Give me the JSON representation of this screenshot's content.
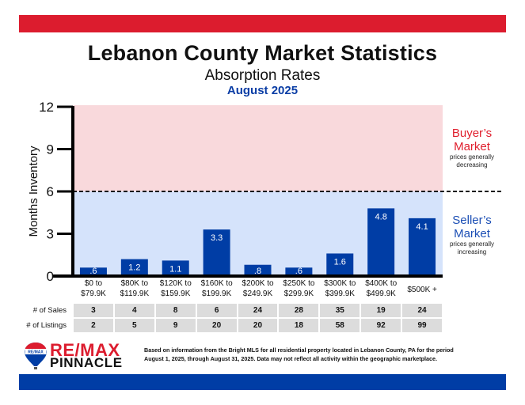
{
  "header": {
    "title": "Lebanon County Market Statistics",
    "subtitle": "Absorption Rates",
    "period": "August 2025"
  },
  "colors": {
    "top_band": "#dc1c2e",
    "bottom_band": "#003da5",
    "bar": "#003da5",
    "buyer_zone": "#f9d9dc",
    "seller_zone": "#d5e3fb",
    "buyer_text": "#e0202e",
    "seller_text": "#1c4fb5"
  },
  "zones": {
    "buyer": {
      "title_line1": "Buyer’s",
      "title_line2": "Market",
      "note_line1": "prices generally",
      "note_line2": "decreasing"
    },
    "seller": {
      "title_line1": "Seller’s",
      "title_line2": "Market",
      "note_line1": "prices generally",
      "note_line2": "increasing"
    },
    "threshold": 6
  },
  "chart_data": {
    "type": "bar",
    "title": "Absorption Rates",
    "xlabel": "",
    "ylabel": "Months Inventory",
    "ylim": [
      0,
      12
    ],
    "yticks": [
      0,
      3,
      6,
      9,
      12
    ],
    "grid": false,
    "reference_line": {
      "y": 6,
      "style": "dashed"
    },
    "categories": [
      [
        "$0 to",
        "$79.9K"
      ],
      [
        "$80K to",
        "$119.9K"
      ],
      [
        "$120K to",
        "$159.9K"
      ],
      [
        "$160K to",
        "$199.9K"
      ],
      [
        "$200K to",
        "$249.9K"
      ],
      [
        "$250K to",
        "$299.9K"
      ],
      [
        "$300K to",
        "$399.9K"
      ],
      [
        "$400K to",
        "$499.9K"
      ],
      [
        "$500K +",
        ""
      ]
    ],
    "values": [
      0.6,
      1.2,
      1.1,
      3.3,
      0.8,
      0.6,
      1.6,
      4.8,
      4.1
    ],
    "value_labels": [
      ".6",
      "1.2",
      "1.1",
      "3.3",
      ".8",
      ".6",
      "1.6",
      "4.8",
      "4.1"
    ]
  },
  "table": {
    "rows": [
      {
        "label": "# of Sales",
        "values": [
          "3",
          "4",
          "8",
          "6",
          "24",
          "28",
          "35",
          "19",
          "24"
        ]
      },
      {
        "label": "# of Listings",
        "values": [
          "2",
          "5",
          "9",
          "20",
          "20",
          "18",
          "58",
          "92",
          "99"
        ]
      }
    ]
  },
  "footer": {
    "brand_line1": "RE/MAX",
    "brand_line2": "PINNACLE",
    "balloon_text": "RE/MAX",
    "footnote_line1": "Based on information from the Bright MLS for all residential property located in Lebanon County, PA for the period",
    "footnote_line2": "August 1, 2025, through August 31, 2025.  Data may not reflect all activity within the geographic marketplace."
  }
}
